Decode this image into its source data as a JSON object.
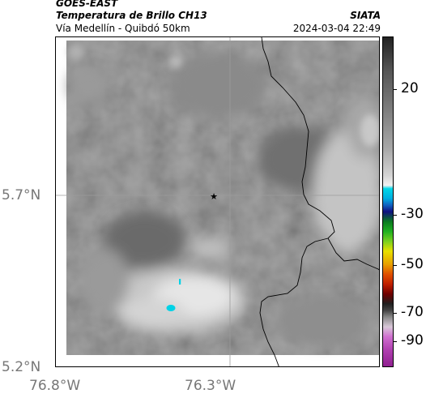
{
  "header": {
    "satellite": "GOES-EAST",
    "product": "Temperatura de Brillo CH13",
    "location": "Vía Medellín - Quibdó 50km",
    "organization": "SIATA",
    "datetime": "2024-03-04 22:49"
  },
  "axes": {
    "y_ticks": [
      "5.7°N",
      "5.2°N"
    ],
    "x_ticks": [
      "76.8°W",
      "76.3°W"
    ]
  },
  "colorbar": {
    "labels": [
      "20",
      "-30",
      "-50",
      "-70",
      "-90"
    ]
  },
  "marker": {
    "symbol": "★"
  }
}
